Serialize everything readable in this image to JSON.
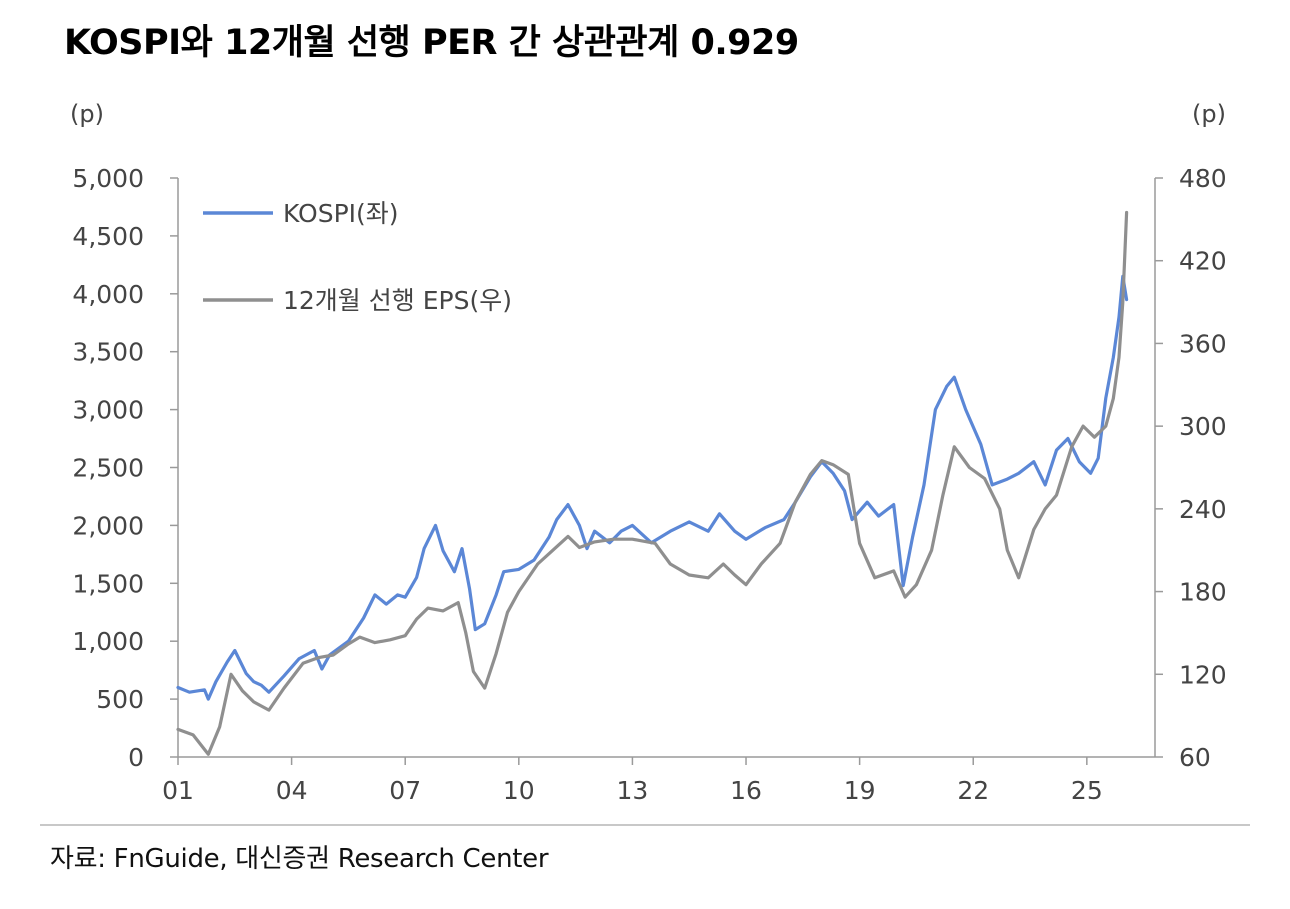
{
  "title": "KOSPI와 12개월 선행 PER 간 상관관계 0.929",
  "source": "자료: FnGuide, 대신증권 Research Center",
  "colors": {
    "kospi": "#5b87d6",
    "eps": "#8f8f8f",
    "axis": "#9a9a9a",
    "text": "#444444"
  },
  "chart_data": {
    "type": "line",
    "title": "KOSPI와 12개월 선행 PER 간 상관관계 0.929",
    "xlabel": "",
    "ylabel_left": "(p)",
    "ylabel_right": "(p)",
    "xlim": [
      2001,
      2026.8
    ],
    "ylim_left": [
      0,
      5000
    ],
    "ylim_right": [
      60,
      480
    ],
    "x_ticks": [
      2001,
      2004,
      2007,
      2010,
      2013,
      2016,
      2019,
      2022,
      2025
    ],
    "x_tick_labels": [
      "01",
      "04",
      "07",
      "10",
      "13",
      "16",
      "19",
      "22",
      "25"
    ],
    "y_left_ticks": [
      0,
      500,
      1000,
      1500,
      2000,
      2500,
      3000,
      3500,
      4000,
      4500,
      5000
    ],
    "y_left_tick_labels": [
      "0",
      "500",
      "1,000",
      "1,500",
      "2,000",
      "2,500",
      "3,000",
      "3,500",
      "4,000",
      "4,500",
      "5,000"
    ],
    "y_right_ticks": [
      60,
      120,
      180,
      240,
      300,
      360,
      420,
      480
    ],
    "y_right_tick_labels": [
      "60",
      "120",
      "180",
      "240",
      "300",
      "360",
      "420",
      "480"
    ],
    "legend_position": "top-left",
    "series": [
      {
        "name": "KOSPI(좌)",
        "axis": "left",
        "points": [
          [
            2001.0,
            600
          ],
          [
            2001.3,
            560
          ],
          [
            2001.7,
            580
          ],
          [
            2001.8,
            500
          ],
          [
            2002.0,
            650
          ],
          [
            2002.3,
            820
          ],
          [
            2002.5,
            920
          ],
          [
            2002.8,
            720
          ],
          [
            2003.0,
            650
          ],
          [
            2003.2,
            620
          ],
          [
            2003.4,
            560
          ],
          [
            2003.8,
            700
          ],
          [
            2004.2,
            850
          ],
          [
            2004.6,
            920
          ],
          [
            2004.8,
            760
          ],
          [
            2005.0,
            880
          ],
          [
            2005.5,
            1000
          ],
          [
            2005.9,
            1200
          ],
          [
            2006.2,
            1400
          ],
          [
            2006.5,
            1320
          ],
          [
            2006.8,
            1400
          ],
          [
            2007.0,
            1380
          ],
          [
            2007.3,
            1550
          ],
          [
            2007.5,
            1800
          ],
          [
            2007.8,
            2000
          ],
          [
            2008.0,
            1780
          ],
          [
            2008.3,
            1600
          ],
          [
            2008.5,
            1800
          ],
          [
            2008.7,
            1450
          ],
          [
            2008.85,
            1100
          ],
          [
            2009.1,
            1150
          ],
          [
            2009.4,
            1400
          ],
          [
            2009.6,
            1600
          ],
          [
            2010.0,
            1620
          ],
          [
            2010.4,
            1700
          ],
          [
            2010.8,
            1900
          ],
          [
            2011.0,
            2050
          ],
          [
            2011.3,
            2180
          ],
          [
            2011.6,
            2000
          ],
          [
            2011.8,
            1800
          ],
          [
            2012.0,
            1950
          ],
          [
            2012.4,
            1850
          ],
          [
            2012.7,
            1950
          ],
          [
            2013.0,
            2000
          ],
          [
            2013.5,
            1850
          ],
          [
            2014.0,
            1950
          ],
          [
            2014.5,
            2030
          ],
          [
            2015.0,
            1950
          ],
          [
            2015.3,
            2100
          ],
          [
            2015.7,
            1950
          ],
          [
            2016.0,
            1880
          ],
          [
            2016.5,
            1980
          ],
          [
            2017.0,
            2050
          ],
          [
            2017.3,
            2200
          ],
          [
            2017.7,
            2420
          ],
          [
            2018.0,
            2550
          ],
          [
            2018.3,
            2450
          ],
          [
            2018.6,
            2300
          ],
          [
            2018.8,
            2050
          ],
          [
            2019.2,
            2200
          ],
          [
            2019.5,
            2080
          ],
          [
            2019.9,
            2180
          ],
          [
            2020.15,
            1480
          ],
          [
            2020.4,
            1900
          ],
          [
            2020.7,
            2350
          ],
          [
            2021.0,
            3000
          ],
          [
            2021.3,
            3200
          ],
          [
            2021.5,
            3280
          ],
          [
            2021.8,
            3000
          ],
          [
            2022.2,
            2700
          ],
          [
            2022.5,
            2350
          ],
          [
            2022.9,
            2400
          ],
          [
            2023.2,
            2450
          ],
          [
            2023.6,
            2550
          ],
          [
            2023.9,
            2350
          ],
          [
            2024.2,
            2650
          ],
          [
            2024.5,
            2750
          ],
          [
            2024.8,
            2550
          ],
          [
            2025.1,
            2450
          ],
          [
            2025.3,
            2580
          ],
          [
            2025.5,
            3100
          ],
          [
            2025.7,
            3450
          ],
          [
            2025.85,
            3800
          ],
          [
            2025.95,
            4150
          ],
          [
            2026.05,
            3950
          ]
        ]
      },
      {
        "name": "12개월 선행 EPS(우)",
        "axis": "right",
        "points": [
          [
            2001.0,
            80
          ],
          [
            2001.4,
            76
          ],
          [
            2001.8,
            62
          ],
          [
            2002.1,
            82
          ],
          [
            2002.4,
            120
          ],
          [
            2002.7,
            108
          ],
          [
            2003.0,
            100
          ],
          [
            2003.4,
            94
          ],
          [
            2003.8,
            110
          ],
          [
            2004.3,
            128
          ],
          [
            2004.7,
            132
          ],
          [
            2005.1,
            134
          ],
          [
            2005.5,
            142
          ],
          [
            2005.8,
            147
          ],
          [
            2006.2,
            143
          ],
          [
            2006.6,
            145
          ],
          [
            2007.0,
            148
          ],
          [
            2007.3,
            160
          ],
          [
            2007.6,
            168
          ],
          [
            2008.0,
            166
          ],
          [
            2008.4,
            172
          ],
          [
            2008.6,
            150
          ],
          [
            2008.8,
            122
          ],
          [
            2009.1,
            110
          ],
          [
            2009.4,
            135
          ],
          [
            2009.7,
            165
          ],
          [
            2010.0,
            180
          ],
          [
            2010.5,
            200
          ],
          [
            2010.9,
            210
          ],
          [
            2011.3,
            220
          ],
          [
            2011.6,
            212
          ],
          [
            2012.0,
            216
          ],
          [
            2012.5,
            218
          ],
          [
            2013.0,
            218
          ],
          [
            2013.6,
            215
          ],
          [
            2014.0,
            200
          ],
          [
            2014.5,
            192
          ],
          [
            2015.0,
            190
          ],
          [
            2015.4,
            200
          ],
          [
            2015.7,
            192
          ],
          [
            2016.0,
            185
          ],
          [
            2016.4,
            200
          ],
          [
            2016.9,
            215
          ],
          [
            2017.3,
            245
          ],
          [
            2017.7,
            265
          ],
          [
            2018.0,
            275
          ],
          [
            2018.3,
            272
          ],
          [
            2018.7,
            265
          ],
          [
            2019.0,
            215
          ],
          [
            2019.4,
            190
          ],
          [
            2019.9,
            195
          ],
          [
            2020.2,
            176
          ],
          [
            2020.5,
            185
          ],
          [
            2020.9,
            210
          ],
          [
            2021.2,
            250
          ],
          [
            2021.5,
            285
          ],
          [
            2021.9,
            270
          ],
          [
            2022.3,
            262
          ],
          [
            2022.7,
            240
          ],
          [
            2022.9,
            210
          ],
          [
            2023.2,
            190
          ],
          [
            2023.6,
            225
          ],
          [
            2023.9,
            240
          ],
          [
            2024.2,
            250
          ],
          [
            2024.6,
            285
          ],
          [
            2024.9,
            300
          ],
          [
            2025.2,
            292
          ],
          [
            2025.5,
            300
          ],
          [
            2025.7,
            320
          ],
          [
            2025.85,
            350
          ],
          [
            2025.95,
            390
          ],
          [
            2026.05,
            455
          ]
        ]
      }
    ]
  }
}
